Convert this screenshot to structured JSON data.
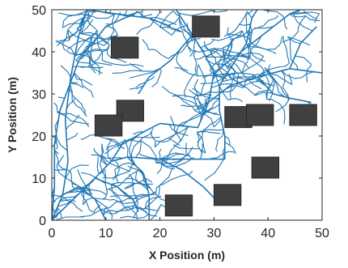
{
  "chart_data": {
    "type": "scatter",
    "title": "",
    "xlabel": "X Position (m)",
    "ylabel": "Y Position (m)",
    "xlim": [
      0,
      50
    ],
    "ylim": [
      0,
      50
    ],
    "xticks": [
      "0",
      "10",
      "20",
      "30",
      "40",
      "50"
    ],
    "yticks": [
      "0",
      "10",
      "20",
      "30",
      "40",
      "50"
    ],
    "grid": false,
    "legend": "none",
    "colors": {
      "tree": "#1f77b4",
      "obstacle": "#404040",
      "obstacle_edge": "#2a2a2a",
      "axis": "#262626"
    },
    "obstacles": [
      {
        "name": "obstacle-1",
        "x": [
          11,
          16
        ],
        "y": [
          38.5,
          43.5
        ]
      },
      {
        "name": "obstacle-2",
        "x": [
          26,
          31
        ],
        "y": [
          43.5,
          48.5
        ]
      },
      {
        "name": "obstacle-3",
        "x": [
          12,
          17
        ],
        "y": [
          23.5,
          28.5
        ]
      },
      {
        "name": "obstacle-4",
        "x": [
          8,
          13
        ],
        "y": [
          20,
          25
        ]
      },
      {
        "name": "obstacle-5",
        "x": [
          32,
          37
        ],
        "y": [
          22,
          27
        ]
      },
      {
        "name": "obstacle-6",
        "x": [
          36,
          41
        ],
        "y": [
          22.5,
          27.5
        ]
      },
      {
        "name": "obstacle-7",
        "x": [
          44,
          49
        ],
        "y": [
          22.5,
          27.5
        ]
      },
      {
        "name": "obstacle-8",
        "x": [
          37,
          42
        ],
        "y": [
          10,
          15
        ]
      },
      {
        "name": "obstacle-9",
        "x": [
          30,
          35
        ],
        "y": [
          3.5,
          8.5
        ]
      },
      {
        "name": "obstacle-10",
        "x": [
          21,
          26
        ],
        "y": [
          1,
          6
        ]
      }
    ],
    "tree_trunks": [
      [
        [
          0,
          0
        ],
        [
          2,
          6
        ],
        [
          3,
          14
        ],
        [
          2.5,
          24
        ],
        [
          3.5,
          34
        ],
        [
          5,
          44
        ],
        [
          6.5,
          50
        ]
      ],
      [
        [
          0,
          0
        ],
        [
          4,
          5
        ],
        [
          8,
          10
        ],
        [
          11,
          14
        ],
        [
          14,
          15
        ],
        [
          20,
          14.5
        ],
        [
          26,
          14.5
        ],
        [
          32,
          14.5
        ]
      ],
      [
        [
          0,
          0
        ],
        [
          0.5,
          8
        ],
        [
          0.5,
          18
        ],
        [
          1.5,
          26
        ]
      ],
      [
        [
          2,
          6
        ],
        [
          5,
          8
        ],
        [
          8,
          5
        ],
        [
          10,
          0
        ]
      ],
      [
        [
          14,
          15
        ],
        [
          17,
          11
        ],
        [
          18,
          6
        ],
        [
          18,
          0
        ]
      ],
      [
        [
          1.5,
          26
        ],
        [
          5,
          38
        ],
        [
          10,
          46
        ],
        [
          16,
          49.5
        ]
      ],
      [
        [
          8,
          10
        ],
        [
          12,
          8
        ],
        [
          15,
          5
        ],
        [
          16,
          2
        ]
      ],
      [
        [
          11,
          14
        ],
        [
          13,
          18
        ],
        [
          17,
          21
        ],
        [
          20,
          23
        ]
      ],
      [
        [
          20,
          14.5
        ],
        [
          24,
          12
        ],
        [
          28,
          8
        ],
        [
          31,
          4
        ]
      ],
      [
        [
          32,
          14.5
        ],
        [
          32,
          20
        ],
        [
          31,
          26
        ],
        [
          31,
          32
        ],
        [
          33,
          36
        ]
      ],
      [
        [
          20,
          23
        ],
        [
          27,
          22
        ],
        [
          29,
          28
        ],
        [
          30,
          35
        ],
        [
          28,
          40
        ],
        [
          26,
          44
        ],
        [
          24,
          48
        ],
        [
          23,
          50
        ]
      ],
      [
        [
          29,
          28
        ],
        [
          33,
          32
        ],
        [
          38,
          34
        ],
        [
          44,
          36
        ],
        [
          50,
          35
        ]
      ],
      [
        [
          30,
          35
        ],
        [
          35,
          40
        ],
        [
          40,
          45
        ],
        [
          44,
          49
        ],
        [
          46,
          50
        ]
      ],
      [
        [
          26,
          44
        ],
        [
          22,
          38
        ],
        [
          18,
          34
        ],
        [
          16,
          30
        ]
      ],
      [
        [
          33,
          36
        ],
        [
          36,
          42
        ],
        [
          37,
          48
        ],
        [
          38,
          50
        ]
      ],
      [
        [
          38,
          34
        ],
        [
          41,
          30
        ],
        [
          44,
          29
        ],
        [
          48,
          28
        ]
      ],
      [
        [
          6.5,
          50
        ],
        [
          12,
          49
        ],
        [
          18,
          48
        ],
        [
          22,
          46
        ]
      ],
      [
        [
          44,
          36
        ],
        [
          46,
          42
        ],
        [
          49,
          46
        ]
      ]
    ],
    "random_seed": 7,
    "twig_count": 420
  }
}
